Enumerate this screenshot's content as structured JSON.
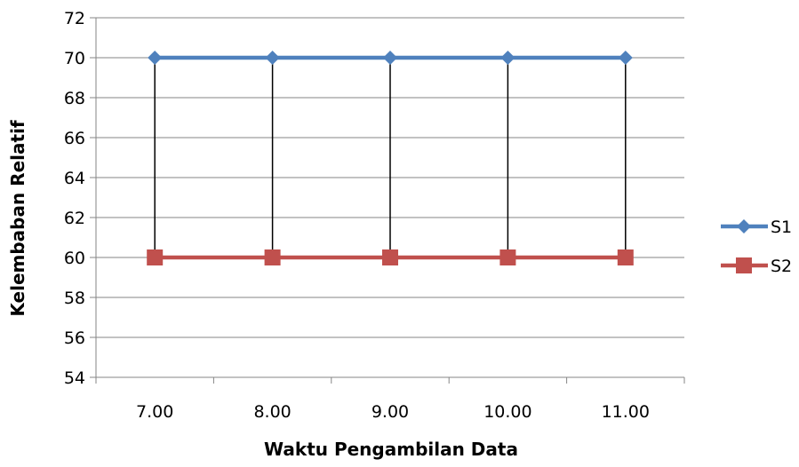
{
  "chart_data": {
    "type": "line",
    "title": "",
    "xlabel": "Waktu Pengambilan Data",
    "ylabel": "Kelembaban Relatif",
    "categories": [
      "7.00",
      "8.00",
      "9.00",
      "10.00",
      "11.00"
    ],
    "ylim": [
      54,
      72
    ],
    "yticks": [
      54,
      56,
      58,
      60,
      62,
      64,
      66,
      68,
      70,
      72
    ],
    "grid": true,
    "legend_position": "right",
    "drop_lines": true,
    "series": [
      {
        "name": "S1",
        "values": [
          70,
          70,
          70,
          70,
          70
        ],
        "color": "#4F81BD",
        "marker": "diamond"
      },
      {
        "name": "S2",
        "values": [
          60,
          60,
          60,
          60,
          60
        ],
        "color": "#C0504D",
        "marker": "square"
      }
    ]
  }
}
